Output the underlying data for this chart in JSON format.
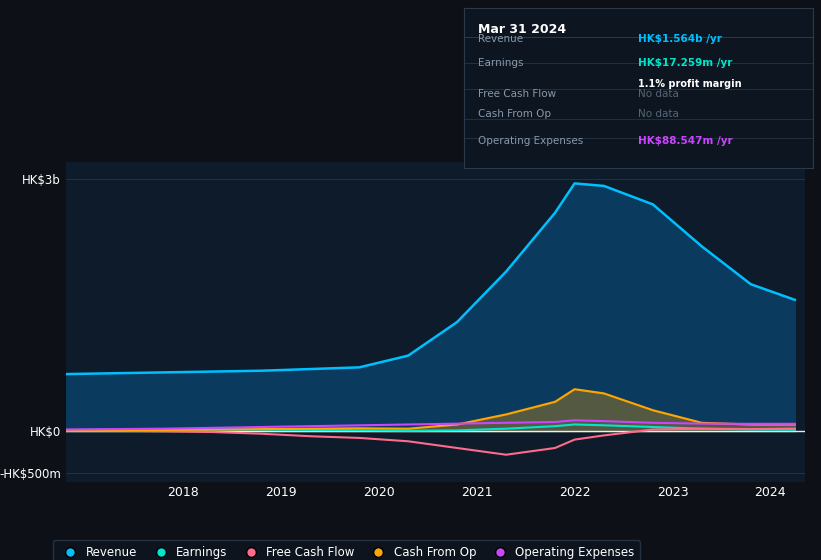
{
  "bg_color": "#0d1117",
  "plot_bg_color": "#0d1b2a",
  "grid_color": "#1e3050",
  "ylim": [
    -600,
    3200
  ],
  "yticks": [
    -500,
    0,
    3000
  ],
  "ytick_labels": [
    "-HK$500m",
    "HK$0",
    "HK$3b"
  ],
  "x_years": [
    2016.8,
    2017.3,
    2017.8,
    2018.3,
    2018.8,
    2019.3,
    2019.8,
    2020.3,
    2020.8,
    2021.3,
    2021.8,
    2022.0,
    2022.3,
    2022.8,
    2023.3,
    2023.8,
    2024.25
  ],
  "revenue": [
    680,
    690,
    700,
    710,
    720,
    740,
    760,
    900,
    1300,
    1900,
    2600,
    2950,
    2920,
    2700,
    2200,
    1750,
    1564
  ],
  "earnings": [
    15,
    18,
    20,
    22,
    20,
    15,
    10,
    5,
    10,
    30,
    60,
    80,
    70,
    50,
    30,
    20,
    17.3
  ],
  "free_cash_flow": [
    10,
    5,
    0,
    -10,
    -30,
    -60,
    -80,
    -120,
    -200,
    -280,
    -200,
    -100,
    -50,
    20,
    30,
    25,
    30
  ],
  "cash_from_op": [
    5,
    10,
    15,
    20,
    25,
    30,
    35,
    30,
    80,
    200,
    350,
    500,
    450,
    250,
    100,
    80,
    80
  ],
  "operating_expenses": [
    20,
    25,
    30,
    40,
    50,
    60,
    70,
    80,
    90,
    100,
    110,
    130,
    120,
    100,
    90,
    88,
    88.5
  ],
  "revenue_color": "#00bfff",
  "earnings_color": "#00e5cc",
  "free_cash_flow_color": "#ff6b8a",
  "cash_from_op_color": "#ffa500",
  "operating_expenses_color": "#cc44ff",
  "revenue_fill_color": "#0a3a5e",
  "legend_labels": [
    "Revenue",
    "Earnings",
    "Free Cash Flow",
    "Cash From Op",
    "Operating Expenses"
  ],
  "xtick_labels": [
    "2018",
    "2019",
    "2020",
    "2021",
    "2022",
    "2023",
    "2024"
  ],
  "xtick_positions": [
    2018,
    2019,
    2020,
    2021,
    2022,
    2023,
    2024
  ],
  "tooltip_title": "Mar 31 2024",
  "tooltip_bg": "#0d1520",
  "tooltip_border": "#2a3a4a",
  "tooltip_rows": [
    {
      "label": "Revenue",
      "value": "HK$1.564b /yr",
      "value_color": "#00bfff",
      "sub": ""
    },
    {
      "label": "Earnings",
      "value": "HK$17.259m /yr",
      "value_color": "#00e5cc",
      "sub": "1.1% profit margin"
    },
    {
      "label": "Free Cash Flow",
      "value": "No data",
      "value_color": "#556677",
      "sub": ""
    },
    {
      "label": "Cash From Op",
      "value": "No data",
      "value_color": "#556677",
      "sub": ""
    },
    {
      "label": "Operating Expenses",
      "value": "HK$88.547m /yr",
      "value_color": "#cc44ff",
      "sub": ""
    }
  ]
}
